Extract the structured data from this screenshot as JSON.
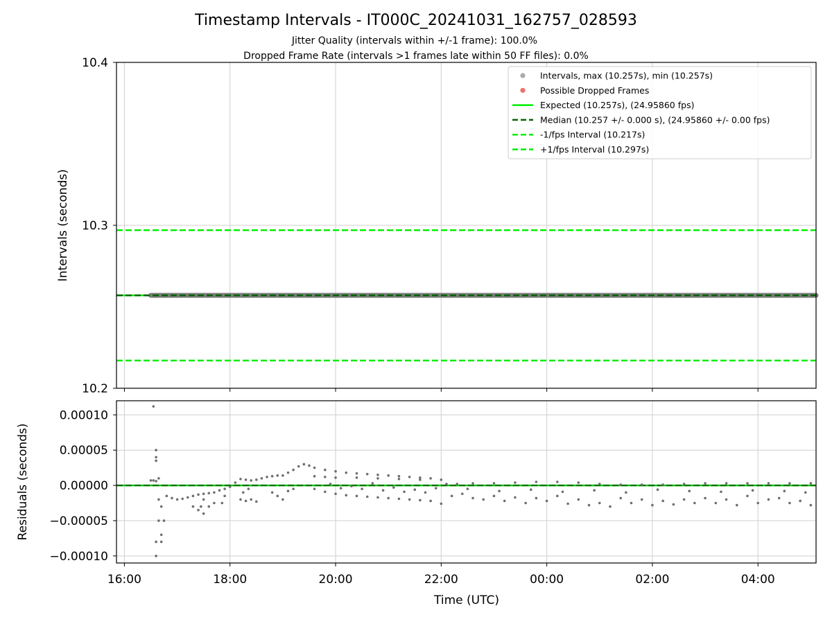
{
  "chart_data": {
    "type": "scatter",
    "title": "Timestamp Intervals - IT000C_20241031_162757_028593",
    "subtitle_lines": [
      "Jitter Quality (intervals within +/-1 frame): 100.0%",
      "Dropped Frame Rate (intervals >1 frames late within 50 FF files): 0.0%"
    ],
    "xlabel": "Time (UTC)",
    "x_range_hours": [
      15.85,
      29.1
    ],
    "x_ticks": [
      {
        "value": 16,
        "label": "16:00"
      },
      {
        "value": 18,
        "label": "18:00"
      },
      {
        "value": 20,
        "label": "20:00"
      },
      {
        "value": 22,
        "label": "22:00"
      },
      {
        "value": 24,
        "label": "00:00"
      },
      {
        "value": 26,
        "label": "02:00"
      },
      {
        "value": 28,
        "label": "04:00"
      }
    ],
    "top_panel": {
      "ylabel": "Intervals (seconds)",
      "ylim": [
        10.2,
        10.4
      ],
      "y_ticks": [
        {
          "value": 10.2,
          "label": "10.2"
        },
        {
          "value": 10.3,
          "label": "10.3"
        },
        {
          "value": 10.4,
          "label": "10.4"
        }
      ],
      "intervals_series": {
        "x_start": 16.5,
        "x_end": 29.1,
        "value": 10.257,
        "color": "#7a7a7a"
      },
      "reference_lines": [
        {
          "key": "expected",
          "value": 10.257,
          "color": "#00ee00",
          "style": "solid"
        },
        {
          "key": "median",
          "value": 10.257,
          "color": "#006400",
          "style": "dashed"
        },
        {
          "key": "minus",
          "value": 10.217,
          "color": "#00ee00",
          "style": "dashed"
        },
        {
          "key": "plus",
          "value": 10.297,
          "color": "#00ee00",
          "style": "dashed"
        }
      ],
      "legend": {
        "placement": "top-right",
        "entries": [
          {
            "label": "Intervals, max (10.257s), min (10.257s)",
            "marker": "dot",
            "color": "#aaaaaa"
          },
          {
            "label": "Possible Dropped Frames",
            "marker": "dot",
            "color": "#f07070"
          },
          {
            "label": "Expected (10.257s), (24.95860 fps)",
            "marker": "solid",
            "color": "#00ee00"
          },
          {
            "label": "Median (10.257 +/- 0.000 s), (24.95860 +/- 0.00 fps)",
            "marker": "dashed",
            "color": "#006400"
          },
          {
            "label": "-1/fps Interval (10.217s)",
            "marker": "dashed",
            "color": "#00ee00"
          },
          {
            "label": "+1/fps Interval (10.297s)",
            "marker": "dashed",
            "color": "#00ee00"
          }
        ]
      }
    },
    "bottom_panel": {
      "ylabel": "Residuals (seconds)",
      "ylim": [
        -0.00011,
        0.00012
      ],
      "y_ticks": [
        {
          "value": 0.0001,
          "label": "0.00010"
        },
        {
          "value": 5e-05,
          "label": "0.00005"
        },
        {
          "value": 0.0,
          "label": "0.00000"
        },
        {
          "value": -5e-05,
          "label": "−0.00005"
        },
        {
          "value": -0.0001,
          "label": "−0.00010"
        }
      ],
      "zero_line_color": "#00cc00",
      "residual_points_color": "#6e6e6e",
      "residual_points": [
        [
          16.55,
          0.000112
        ],
        [
          16.6,
          5e-05
        ],
        [
          16.6,
          4e-05
        ],
        [
          16.6,
          3.5e-05
        ],
        [
          16.6,
          -8e-05
        ],
        [
          16.6,
          -0.0001
        ],
        [
          16.65,
          -5e-05
        ],
        [
          16.7,
          -7e-05
        ],
        [
          16.7,
          -8e-05
        ],
        [
          16.75,
          -5e-05
        ],
        [
          16.65,
          -2e-05
        ],
        [
          16.7,
          -3e-05
        ],
        [
          16.5,
          7e-06
        ],
        [
          16.6,
          6e-06
        ],
        [
          16.55,
          7e-06
        ],
        [
          16.65,
          1e-05
        ],
        [
          16.8,
          -1.5e-05
        ],
        [
          16.9,
          -1.8e-05
        ],
        [
          17.0,
          -2e-05
        ],
        [
          17.1,
          -1.9e-05
        ],
        [
          17.2,
          -1.7e-05
        ],
        [
          17.3,
          -1.5e-05
        ],
        [
          17.4,
          -1.3e-05
        ],
        [
          17.5,
          -1.2e-05
        ],
        [
          17.6,
          -1.1e-05
        ],
        [
          17.7,
          -1e-05
        ],
        [
          17.8,
          -7e-06
        ],
        [
          17.9,
          -5e-06
        ],
        [
          18.0,
          -2e-06
        ],
        [
          18.1,
          4e-06
        ],
        [
          18.2,
          9e-06
        ],
        [
          18.3,
          8e-06
        ],
        [
          18.4,
          7e-06
        ],
        [
          18.5,
          8e-06
        ],
        [
          18.6,
          1e-05
        ],
        [
          18.7,
          1.2e-05
        ],
        [
          18.8,
          1.3e-05
        ],
        [
          18.9,
          1.4e-05
        ],
        [
          19.0,
          1.4e-05
        ],
        [
          19.1,
          1.8e-05
        ],
        [
          19.2,
          2.2e-05
        ],
        [
          19.3,
          2.7e-05
        ],
        [
          19.4,
          3e-05
        ],
        [
          19.5,
          2.8e-05
        ],
        [
          17.3,
          -3e-05
        ],
        [
          17.4,
          -3.5e-05
        ],
        [
          17.5,
          -4e-05
        ],
        [
          17.6,
          -3e-05
        ],
        [
          17.7,
          -2.5e-05
        ],
        [
          17.5,
          -2e-05
        ],
        [
          17.45,
          -3e-05
        ],
        [
          17.85,
          -2.5e-05
        ],
        [
          17.9,
          -1.5e-05
        ],
        [
          18.2,
          -2e-05
        ],
        [
          18.3,
          -2.2e-05
        ],
        [
          18.4,
          -2e-05
        ],
        [
          18.5,
          -2.3e-05
        ],
        [
          18.25,
          -1e-05
        ],
        [
          18.35,
          -5e-06
        ],
        [
          18.8,
          -1e-05
        ],
        [
          18.9,
          -1.5e-05
        ],
        [
          19.0,
          -2e-05
        ],
        [
          19.1,
          -8e-06
        ],
        [
          19.2,
          -5e-06
        ],
        [
          19.6,
          2.5e-05
        ],
        [
          19.8,
          2.2e-05
        ],
        [
          20.0,
          2e-05
        ],
        [
          20.2,
          1.8e-05
        ],
        [
          20.4,
          1.7e-05
        ],
        [
          20.6,
          1.6e-05
        ],
        [
          20.8,
          1.5e-05
        ],
        [
          21.0,
          1.4e-05
        ],
        [
          21.2,
          1.3e-05
        ],
        [
          21.4,
          1.2e-05
        ],
        [
          21.6,
          1.1e-05
        ],
        [
          21.8,
          1e-05
        ],
        [
          22.0,
          8e-06
        ],
        [
          19.6,
          1.3e-05
        ],
        [
          19.8,
          1.2e-05
        ],
        [
          20.0,
          1.1e-05
        ],
        [
          20.4,
          1.1e-05
        ],
        [
          20.8,
          1e-05
        ],
        [
          21.2,
          9e-06
        ],
        [
          21.6,
          8e-06
        ],
        [
          19.6,
          -5e-06
        ],
        [
          19.8,
          -9e-06
        ],
        [
          20.0,
          -1.2e-05
        ],
        [
          20.2,
          -1.4e-05
        ],
        [
          20.4,
          -1.5e-05
        ],
        [
          20.6,
          -1.6e-05
        ],
        [
          20.8,
          -1.7e-05
        ],
        [
          21.0,
          -1.8e-05
        ],
        [
          21.2,
          -1.9e-05
        ],
        [
          21.4,
          -2e-05
        ],
        [
          21.6,
          -2.1e-05
        ],
        [
          21.8,
          -2.2e-05
        ],
        [
          22.0,
          -2.6e-05
        ],
        [
          19.9,
          2e-06
        ],
        [
          20.1,
          -4e-06
        ],
        [
          20.3,
          -1e-06
        ],
        [
          20.5,
          -5e-06
        ],
        [
          20.7,
          3e-06
        ],
        [
          20.9,
          -7e-06
        ],
        [
          21.1,
          -3e-06
        ],
        [
          21.3,
          -9e-06
        ],
        [
          21.5,
          -6e-06
        ],
        [
          21.7,
          -1e-05
        ],
        [
          21.9,
          -4e-06
        ],
        [
          22.1,
          2e-06
        ],
        [
          22.3,
          2e-06
        ],
        [
          22.6,
          3e-06
        ],
        [
          23.0,
          3e-06
        ],
        [
          23.4,
          4e-06
        ],
        [
          23.8,
          5e-06
        ],
        [
          24.2,
          5e-06
        ],
        [
          24.6,
          4e-06
        ],
        [
          25.0,
          2e-06
        ],
        [
          25.4,
          1e-06
        ],
        [
          25.8,
          1e-06
        ],
        [
          26.2,
          1e-06
        ],
        [
          26.6,
          2e-06
        ],
        [
          27.0,
          3e-06
        ],
        [
          27.4,
          3e-06
        ],
        [
          27.8,
          3e-06
        ],
        [
          28.2,
          3e-06
        ],
        [
          28.6,
          3e-06
        ],
        [
          29.0,
          3e-06
        ],
        [
          22.2,
          -1.5e-05
        ],
        [
          22.4,
          -1.2e-05
        ],
        [
          22.6,
          -1.8e-05
        ],
        [
          22.8,
          -2e-05
        ],
        [
          23.0,
          -1.5e-05
        ],
        [
          23.2,
          -2.2e-05
        ],
        [
          23.4,
          -1.7e-05
        ],
        [
          23.6,
          -2.5e-05
        ],
        [
          23.8,
          -1.8e-05
        ],
        [
          24.0,
          -2.2e-05
        ],
        [
          24.2,
          -1.5e-05
        ],
        [
          24.4,
          -2.6e-05
        ],
        [
          24.6,
          -2e-05
        ],
        [
          24.8,
          -2.8e-05
        ],
        [
          25.0,
          -2.5e-05
        ],
        [
          25.2,
          -3e-05
        ],
        [
          25.4,
          -1.8e-05
        ],
        [
          25.6,
          -2.5e-05
        ],
        [
          25.8,
          -2e-05
        ],
        [
          26.0,
          -2.8e-05
        ],
        [
          26.2,
          -2.2e-05
        ],
        [
          26.4,
          -2.7e-05
        ],
        [
          26.6,
          -2e-05
        ],
        [
          26.8,
          -2.5e-05
        ],
        [
          27.0,
          -1.8e-05
        ],
        [
          27.2,
          -2.5e-05
        ],
        [
          27.4,
          -2e-05
        ],
        [
          27.6,
          -2.8e-05
        ],
        [
          27.8,
          -1.5e-05
        ],
        [
          28.0,
          -2.5e-05
        ],
        [
          28.2,
          -2e-05
        ],
        [
          28.4,
          -1.8e-05
        ],
        [
          28.6,
          -2.5e-05
        ],
        [
          28.8,
          -2.2e-05
        ],
        [
          29.0,
          -2.8e-05
        ],
        [
          22.5,
          -5e-06
        ],
        [
          23.1,
          -8e-06
        ],
        [
          23.7,
          -6e-06
        ],
        [
          24.3,
          -9e-06
        ],
        [
          24.9,
          -7e-06
        ],
        [
          25.5,
          -1e-05
        ],
        [
          26.1,
          -6e-06
        ],
        [
          26.7,
          -8e-06
        ],
        [
          27.3,
          -9e-06
        ],
        [
          27.9,
          -7e-06
        ],
        [
          28.5,
          -8e-06
        ],
        [
          28.9,
          -1e-05
        ]
      ]
    }
  }
}
